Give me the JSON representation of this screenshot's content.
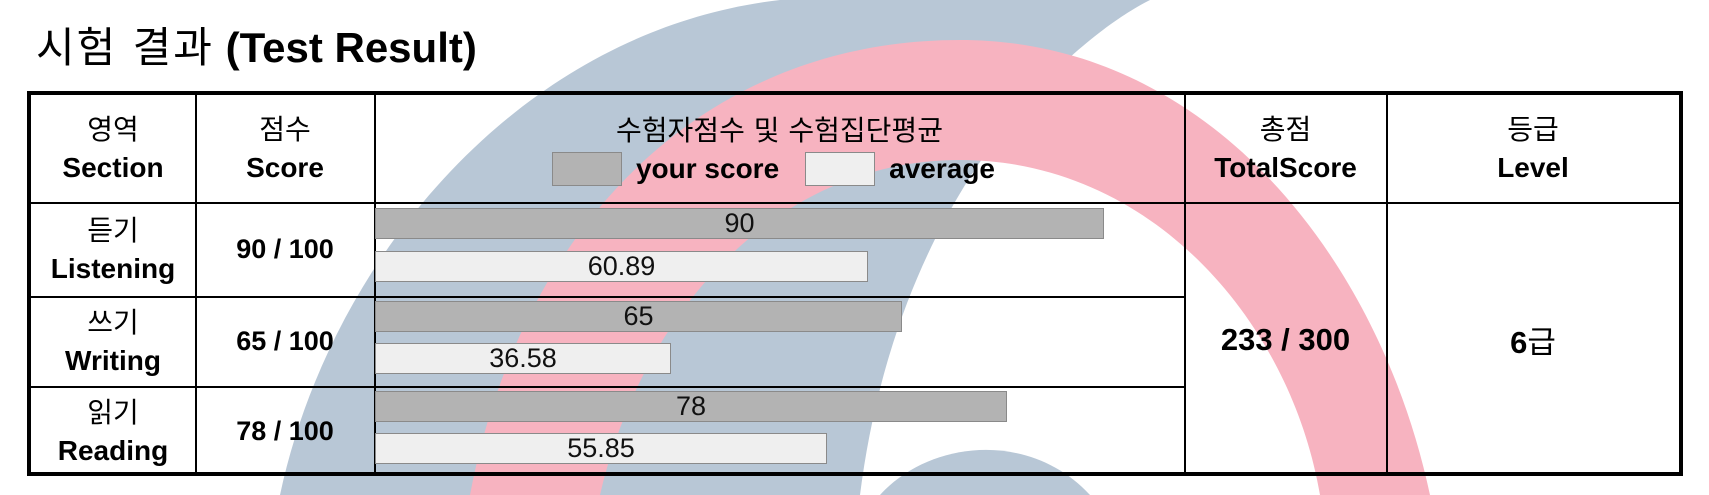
{
  "title": {
    "korean": "시험 결과",
    "english": "(Test Result)"
  },
  "headers": {
    "section": {
      "ko": "영역",
      "en": "Section"
    },
    "score": {
      "ko": "점수",
      "en": "Score"
    },
    "chart": {
      "ko": "수험자점수 및 수험집단평균",
      "legend_yours": "your score",
      "legend_avg": "average"
    },
    "total": {
      "ko": "총점",
      "en": "TotalScore"
    },
    "level": {
      "ko": "등급",
      "en": "Level"
    }
  },
  "rows": [
    {
      "ko": "듣기",
      "en": "Listening",
      "score": "90 / 100",
      "your_label": "90",
      "avg_label": "60.89"
    },
    {
      "ko": "쓰기",
      "en": "Writing",
      "score": "65 / 100",
      "your_label": "65",
      "avg_label": "36.58"
    },
    {
      "ko": "읽기",
      "en": "Reading",
      "score": "78 / 100",
      "your_label": "78",
      "avg_label": "55.85"
    }
  ],
  "total": "233 / 300",
  "level": {
    "number": "6",
    "suffix": "급"
  },
  "chart_data": {
    "type": "bar",
    "orientation": "horizontal",
    "categories": [
      "Listening",
      "Writing",
      "Reading"
    ],
    "series": [
      {
        "name": "your score",
        "values": [
          90,
          65,
          78
        ]
      },
      {
        "name": "average",
        "values": [
          60.89,
          36.58,
          55.85
        ]
      }
    ],
    "xlim": [
      0,
      100
    ],
    "colors": {
      "your score": "#b3b3b3",
      "average": "#efefef"
    }
  },
  "colors": {
    "watermark_blue": "#b8c7d6",
    "watermark_pink": "#f7b3c0"
  }
}
